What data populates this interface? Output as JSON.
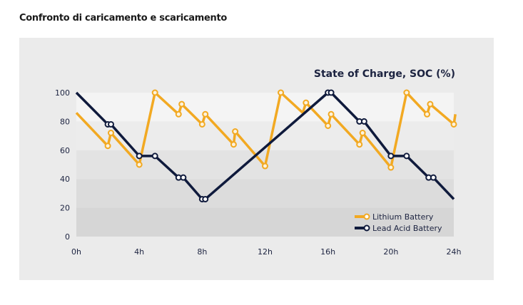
{
  "page_title": "Confronto di caricamento e scaricamento",
  "chart_data": {
    "type": "line",
    "title": "State of Charge, SOC (%)",
    "xlabel": "",
    "ylabel": "",
    "xlim": [
      0,
      24
    ],
    "ylim": [
      0,
      100
    ],
    "x_ticks": [
      0,
      4,
      8,
      12,
      16,
      20,
      24
    ],
    "x_tick_labels": [
      "0h",
      "4h",
      "8h",
      "12h",
      "16h",
      "20h",
      "24h"
    ],
    "y_ticks": [
      0,
      20,
      40,
      60,
      80,
      100
    ],
    "y_tick_labels": [
      "0",
      "20",
      "40",
      "60",
      "80",
      "100"
    ],
    "legend_position": "bottom-right",
    "series": [
      {
        "name": "Lithium Battery",
        "color": "#f2a922",
        "points": [
          [
            0,
            86
          ],
          [
            2,
            63
          ],
          [
            2.2,
            72
          ],
          [
            4,
            50
          ],
          [
            5,
            100
          ],
          [
            6.5,
            85
          ],
          [
            6.7,
            92
          ],
          [
            8,
            78
          ],
          [
            8.2,
            85
          ],
          [
            10,
            64
          ],
          [
            10.1,
            73
          ],
          [
            12,
            49
          ],
          [
            13,
            100
          ],
          [
            14.4,
            86
          ],
          [
            14.6,
            93
          ],
          [
            16,
            77
          ],
          [
            16.2,
            85
          ],
          [
            18,
            64
          ],
          [
            18.2,
            72
          ],
          [
            20,
            48
          ],
          [
            21,
            100
          ],
          [
            22.3,
            85
          ],
          [
            22.5,
            92
          ],
          [
            24,
            78
          ],
          [
            24.1,
            85
          ]
        ],
        "markers": [
          [
            2,
            63
          ],
          [
            2.2,
            72
          ],
          [
            4,
            50
          ],
          [
            5,
            100
          ],
          [
            6.5,
            85
          ],
          [
            6.7,
            92
          ],
          [
            8,
            78
          ],
          [
            8.2,
            85
          ],
          [
            10,
            64
          ],
          [
            10.1,
            73
          ],
          [
            12,
            49
          ],
          [
            13,
            100
          ],
          [
            14.6,
            93
          ],
          [
            16,
            77
          ],
          [
            16.2,
            85
          ],
          [
            18,
            64
          ],
          [
            18.2,
            72
          ],
          [
            20,
            48
          ],
          [
            21,
            100
          ],
          [
            22.3,
            85
          ],
          [
            22.5,
            92
          ],
          [
            24,
            78
          ]
        ]
      },
      {
        "name": "Lead Acid Battery",
        "color": "#0f1a3c",
        "points": [
          [
            0,
            100
          ],
          [
            2,
            78
          ],
          [
            2.2,
            78
          ],
          [
            4,
            56
          ],
          [
            5,
            56
          ],
          [
            6.5,
            41
          ],
          [
            6.8,
            41
          ],
          [
            8,
            26
          ],
          [
            8.2,
            26
          ],
          [
            16,
            100
          ],
          [
            16.2,
            100
          ],
          [
            18,
            80
          ],
          [
            18.3,
            80
          ],
          [
            20,
            56
          ],
          [
            21,
            56
          ],
          [
            22.4,
            41
          ],
          [
            22.7,
            41
          ],
          [
            24,
            26
          ]
        ],
        "markers": [
          [
            2,
            78
          ],
          [
            2.2,
            78
          ],
          [
            4,
            56
          ],
          [
            5,
            56
          ],
          [
            6.5,
            41
          ],
          [
            6.8,
            41
          ],
          [
            8,
            26
          ],
          [
            8.2,
            26
          ],
          [
            16,
            100
          ],
          [
            16.2,
            100
          ],
          [
            18,
            80
          ],
          [
            18.3,
            80
          ],
          [
            20,
            56
          ],
          [
            21,
            56
          ],
          [
            22.4,
            41
          ],
          [
            22.7,
            41
          ]
        ]
      }
    ]
  }
}
